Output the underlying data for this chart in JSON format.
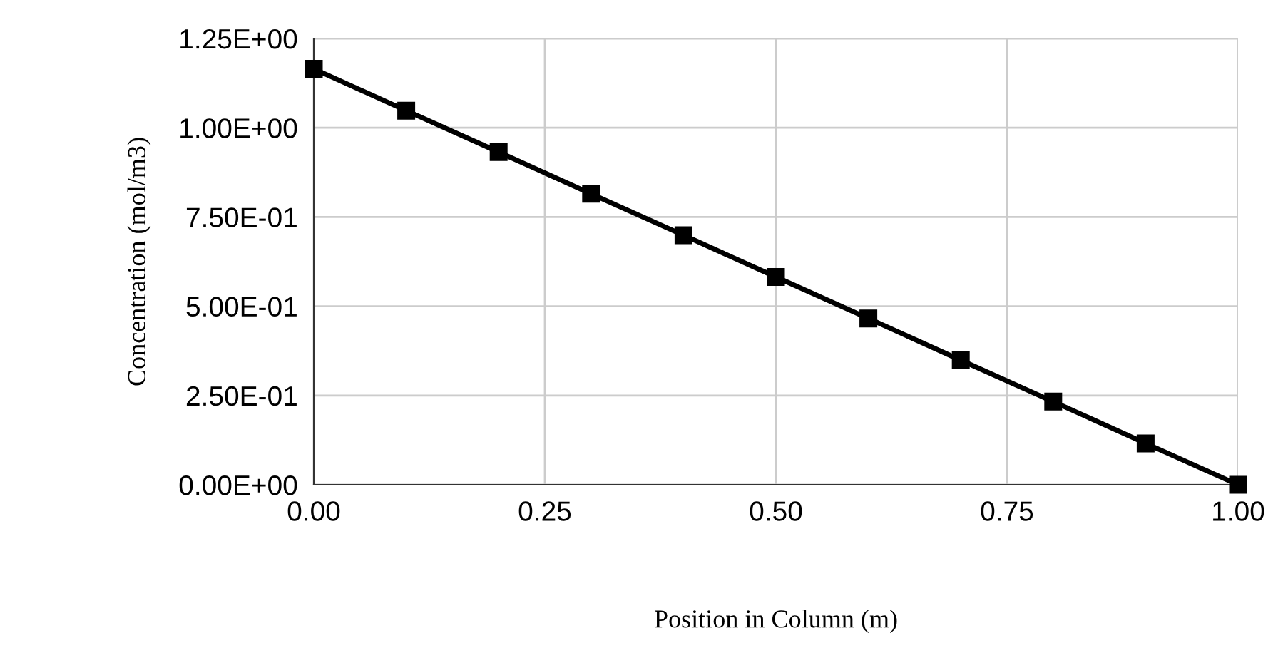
{
  "chart_data": {
    "type": "line",
    "xlabel": "Position in Column (m)",
    "ylabel": "Concentration (mol/m3)",
    "x": [
      0,
      0.1,
      0.2,
      0.3,
      0.4,
      0.5,
      0.6,
      0.7,
      0.8,
      0.9,
      1.0
    ],
    "series": [
      {
        "color": "#000000",
        "values": [
          1.165,
          1.048,
          0.932,
          0.815,
          0.699,
          0.582,
          0.466,
          0.349,
          0.233,
          0.116,
          0.0
        ]
      }
    ],
    "xlim": [
      0,
      1
    ],
    "ylim": [
      0,
      1.25
    ],
    "xticks": [
      {
        "value": 0,
        "label": "0.00"
      },
      {
        "value": 0.25,
        "label": "0.25"
      },
      {
        "value": 0.5,
        "label": "0.50"
      },
      {
        "value": 0.75,
        "label": "0.75"
      },
      {
        "value": 1.0,
        "label": "1.00"
      }
    ],
    "yticks": [
      {
        "value": 0,
        "label": "0.00E+00"
      },
      {
        "value": 0.25,
        "label": "2.50E-01"
      },
      {
        "value": 0.5,
        "label": "5.00E-01"
      },
      {
        "value": 0.75,
        "label": "7.50E-01"
      },
      {
        "value": 1.0,
        "label": "1.00E+00"
      },
      {
        "value": 1.25,
        "label": "1.25E+00"
      }
    ],
    "grid": true,
    "marker": "square",
    "line_style": "solid"
  }
}
